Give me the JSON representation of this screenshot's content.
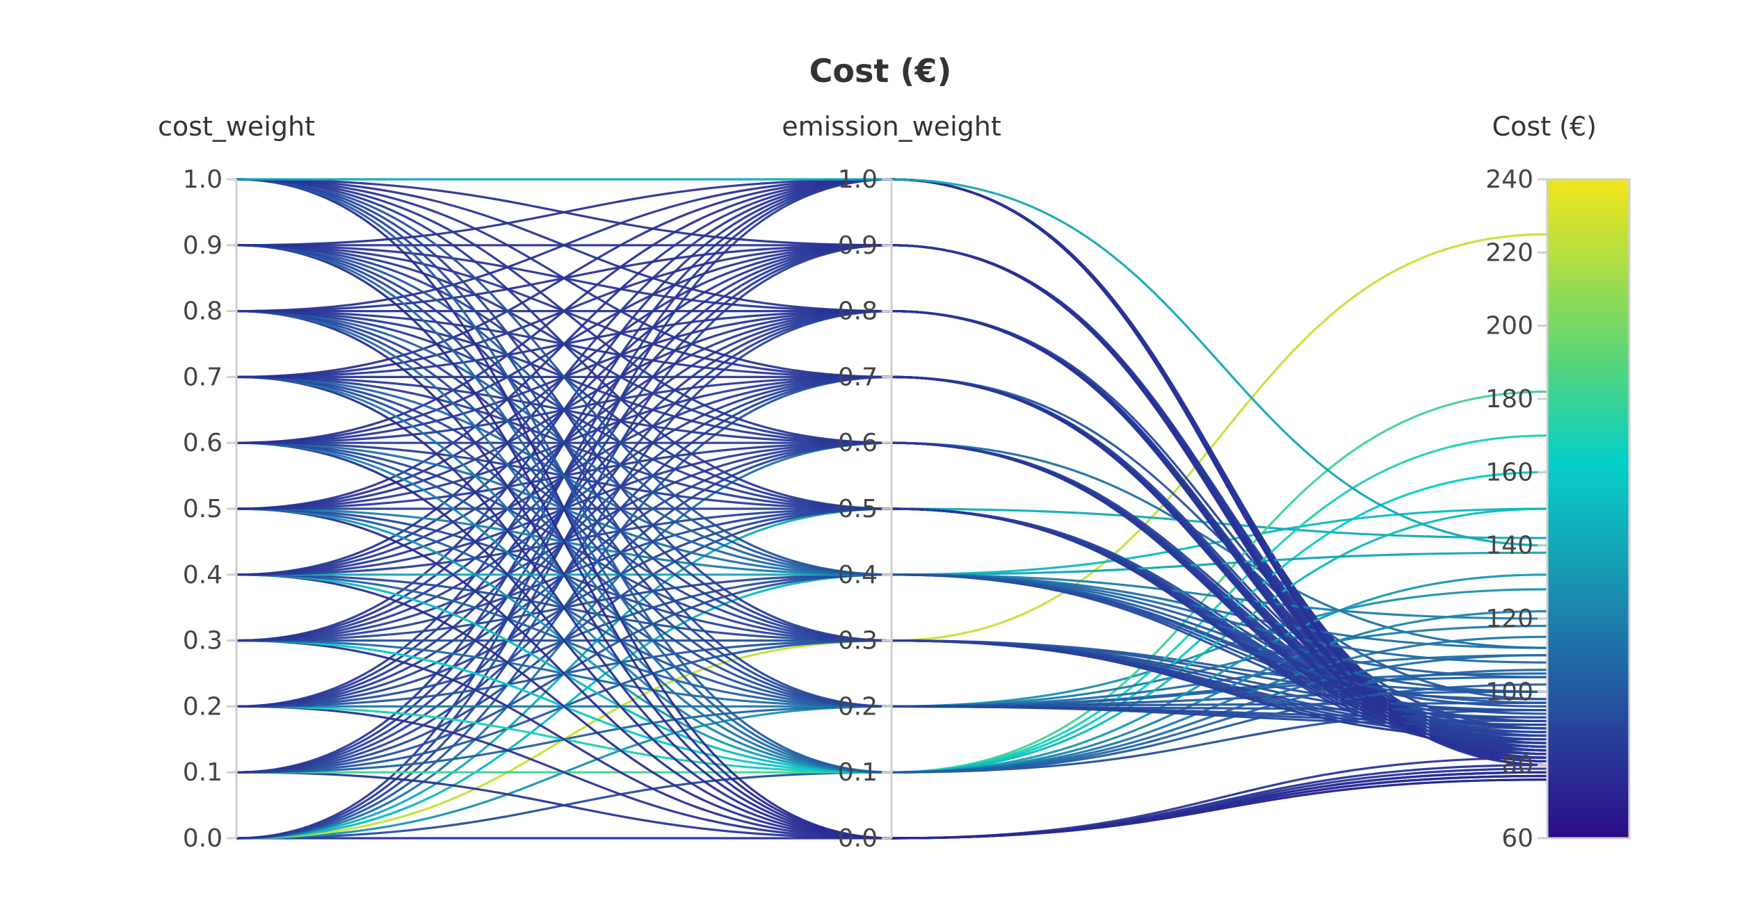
{
  "chart_data": {
    "type": "parallel-coordinates",
    "title": "Cost (€)",
    "axes": [
      {
        "name": "cost_weight",
        "range": [
          0,
          1
        ],
        "ticks": [
          "0.0",
          "0.1",
          "0.2",
          "0.3",
          "0.4",
          "0.5",
          "0.6",
          "0.7",
          "0.8",
          "0.9",
          "1.0"
        ]
      },
      {
        "name": "emission_weight",
        "range": [
          0,
          1
        ],
        "ticks": [
          "0.0",
          "0.1",
          "0.2",
          "0.3",
          "0.4",
          "0.5",
          "0.6",
          "0.7",
          "0.8",
          "0.9",
          "1.0"
        ]
      },
      {
        "name": "Cost (€)",
        "range": [
          60,
          240
        ],
        "ticks": [
          "60",
          "80",
          "100",
          "120",
          "140",
          "160",
          "180",
          "200",
          "220",
          "240"
        ]
      }
    ],
    "colorscale": {
      "name": "viridis-like",
      "range": [
        60,
        240
      ],
      "stops": [
        "#2b0c89",
        "#283c9a",
        "#1f6fa8",
        "#14a3b4",
        "#06cfc8",
        "#52d47d",
        "#a5dc4a",
        "#f2e61a"
      ]
    },
    "lines": [
      [
        0.0,
        0.0,
        78
      ],
      [
        0.0,
        0.1,
        95
      ],
      [
        0.0,
        0.2,
        128
      ],
      [
        0.0,
        0.3,
        225
      ],
      [
        0.0,
        0.4,
        150
      ],
      [
        0.0,
        0.5,
        142
      ],
      [
        0.0,
        0.6,
        112
      ],
      [
        0.0,
        0.7,
        98
      ],
      [
        0.0,
        0.8,
        90
      ],
      [
        0.0,
        0.9,
        86
      ],
      [
        0.0,
        1.0,
        84
      ],
      [
        0.1,
        0.0,
        82
      ],
      [
        0.1,
        0.1,
        182
      ],
      [
        0.1,
        0.2,
        105
      ],
      [
        0.1,
        0.3,
        100
      ],
      [
        0.1,
        0.4,
        96
      ],
      [
        0.1,
        0.5,
        92
      ],
      [
        0.1,
        0.6,
        90
      ],
      [
        0.1,
        0.7,
        88
      ],
      [
        0.1,
        0.8,
        86
      ],
      [
        0.1,
        0.9,
        85
      ],
      [
        0.1,
        1.0,
        84
      ],
      [
        0.2,
        0.0,
        80
      ],
      [
        0.2,
        0.1,
        170
      ],
      [
        0.2,
        0.2,
        118
      ],
      [
        0.2,
        0.3,
        98
      ],
      [
        0.2,
        0.4,
        94
      ],
      [
        0.2,
        0.5,
        90
      ],
      [
        0.2,
        0.6,
        88
      ],
      [
        0.2,
        0.7,
        86
      ],
      [
        0.2,
        0.8,
        85
      ],
      [
        0.2,
        0.9,
        84
      ],
      [
        0.2,
        1.0,
        83
      ],
      [
        0.3,
        0.0,
        79
      ],
      [
        0.3,
        0.1,
        160
      ],
      [
        0.3,
        0.2,
        110
      ],
      [
        0.3,
        0.3,
        95
      ],
      [
        0.3,
        0.4,
        92
      ],
      [
        0.3,
        0.5,
        89
      ],
      [
        0.3,
        0.6,
        87
      ],
      [
        0.3,
        0.7,
        86
      ],
      [
        0.3,
        0.8,
        85
      ],
      [
        0.3,
        0.9,
        84
      ],
      [
        0.3,
        1.0,
        83
      ],
      [
        0.4,
        0.0,
        78
      ],
      [
        0.4,
        0.1,
        150
      ],
      [
        0.4,
        0.2,
        104
      ],
      [
        0.4,
        0.3,
        93
      ],
      [
        0.4,
        0.4,
        138
      ],
      [
        0.4,
        0.5,
        88
      ],
      [
        0.4,
        0.6,
        86
      ],
      [
        0.4,
        0.7,
        85
      ],
      [
        0.4,
        0.8,
        84
      ],
      [
        0.4,
        0.9,
        83
      ],
      [
        0.4,
        1.0,
        82
      ],
      [
        0.5,
        0.0,
        78
      ],
      [
        0.5,
        0.1,
        132
      ],
      [
        0.5,
        0.2,
        100
      ],
      [
        0.5,
        0.3,
        91
      ],
      [
        0.5,
        0.4,
        120
      ],
      [
        0.5,
        0.5,
        87
      ],
      [
        0.5,
        0.6,
        85
      ],
      [
        0.5,
        0.7,
        84
      ],
      [
        0.5,
        0.8,
        83
      ],
      [
        0.5,
        0.9,
        82
      ],
      [
        0.5,
        1.0,
        81
      ],
      [
        0.6,
        0.0,
        77
      ],
      [
        0.6,
        0.1,
        122
      ],
      [
        0.6,
        0.2,
        97
      ],
      [
        0.6,
        0.3,
        90
      ],
      [
        0.6,
        0.4,
        112
      ],
      [
        0.6,
        0.5,
        86
      ],
      [
        0.6,
        0.6,
        85
      ],
      [
        0.6,
        0.7,
        84
      ],
      [
        0.6,
        0.8,
        83
      ],
      [
        0.6,
        0.9,
        82
      ],
      [
        0.6,
        1.0,
        81
      ],
      [
        0.7,
        0.0,
        77
      ],
      [
        0.7,
        0.1,
        115
      ],
      [
        0.7,
        0.2,
        95
      ],
      [
        0.7,
        0.3,
        89
      ],
      [
        0.7,
        0.4,
        108
      ],
      [
        0.7,
        0.5,
        86
      ],
      [
        0.7,
        0.6,
        84
      ],
      [
        0.7,
        0.7,
        83
      ],
      [
        0.7,
        0.8,
        82
      ],
      [
        0.7,
        0.9,
        81
      ],
      [
        0.7,
        1.0,
        80
      ],
      [
        0.8,
        0.0,
        77
      ],
      [
        0.8,
        0.1,
        110
      ],
      [
        0.8,
        0.2,
        93
      ],
      [
        0.8,
        0.3,
        88
      ],
      [
        0.8,
        0.4,
        104
      ],
      [
        0.8,
        0.5,
        85
      ],
      [
        0.8,
        0.6,
        84
      ],
      [
        0.8,
        0.7,
        83
      ],
      [
        0.8,
        0.8,
        82
      ],
      [
        0.8,
        0.9,
        81
      ],
      [
        0.8,
        1.0,
        80
      ],
      [
        0.9,
        0.0,
        76
      ],
      [
        0.9,
        0.1,
        106
      ],
      [
        0.9,
        0.2,
        92
      ],
      [
        0.9,
        0.3,
        87
      ],
      [
        0.9,
        0.4,
        100
      ],
      [
        0.9,
        0.5,
        85
      ],
      [
        0.9,
        0.6,
        84
      ],
      [
        0.9,
        0.7,
        83
      ],
      [
        0.9,
        0.8,
        82
      ],
      [
        0.9,
        0.9,
        81
      ],
      [
        0.9,
        1.0,
        80
      ],
      [
        1.0,
        0.0,
        76
      ],
      [
        1.0,
        0.1,
        102
      ],
      [
        1.0,
        0.2,
        91
      ],
      [
        1.0,
        0.3,
        87
      ],
      [
        1.0,
        0.4,
        97
      ],
      [
        1.0,
        0.5,
        84
      ],
      [
        1.0,
        0.6,
        83
      ],
      [
        1.0,
        0.7,
        82
      ],
      [
        1.0,
        0.8,
        81
      ],
      [
        1.0,
        0.9,
        80
      ],
      [
        1.0,
        1.0,
        140
      ]
    ]
  }
}
